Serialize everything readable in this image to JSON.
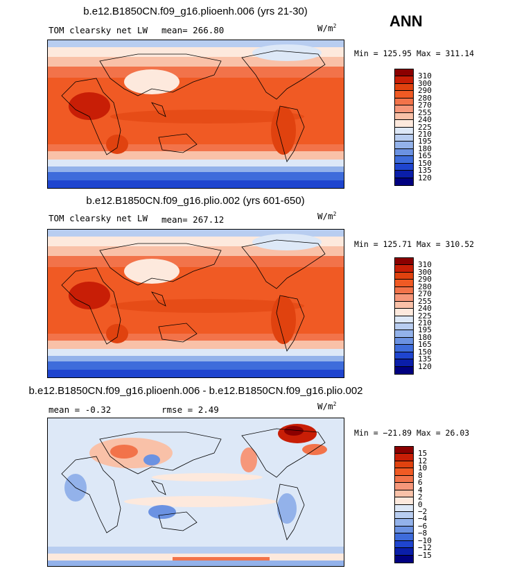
{
  "season": "ANN",
  "units_base": "W/m",
  "units_exp": "2",
  "panels": [
    {
      "title": "b.e12.B1850CN.f09_g16.plioenh.006 (yrs 21-30)",
      "subtitle_left": "TOM clearsky net LW",
      "mean_label": "mean=",
      "mean_value": "266.80",
      "minmax": "Min = 125.95  Max = 311.14",
      "levels": [
        "310",
        "300",
        "290",
        "280",
        "270",
        "255",
        "240",
        "225",
        "210",
        "195",
        "180",
        "165",
        "150",
        "135",
        "120"
      ],
      "colors": [
        "#8b0000",
        "#c81e06",
        "#e0420f",
        "#f05a24",
        "#f2734a",
        "#f6977a",
        "#f9c1a8",
        "#fde9dd",
        "#dde8f7",
        "#b8cdf0",
        "#93b2ea",
        "#6b92e2",
        "#3e6cdb",
        "#1f45cf",
        "#0a1ea9",
        "#000080"
      ]
    },
    {
      "title": "b.e12.B1850CN.f09_g16.plio.002 (yrs 601-650)",
      "subtitle_left": "TOM clearsky net LW",
      "mean_label": "mean=",
      "mean_value": "267.12",
      "minmax": "Min = 125.71  Max = 310.52",
      "levels": [
        "310",
        "300",
        "290",
        "280",
        "270",
        "255",
        "240",
        "225",
        "210",
        "195",
        "180",
        "165",
        "150",
        "135",
        "120"
      ],
      "colors": [
        "#8b0000",
        "#c81e06",
        "#e0420f",
        "#f05a24",
        "#f2734a",
        "#f6977a",
        "#f9c1a8",
        "#fde9dd",
        "#dde8f7",
        "#b8cdf0",
        "#93b2ea",
        "#6b92e2",
        "#3e6cdb",
        "#1f45cf",
        "#0a1ea9",
        "#000080"
      ]
    },
    {
      "title": "b.e12.B1850CN.f09_g16.plioenh.006 - b.e12.B1850CN.f09_g16.plio.002",
      "mean_label": "mean =",
      "mean_value": "-0.32",
      "rmse_label": "rmse =",
      "rmse_value": "2.49",
      "minmax": "Min = −21.89  Max =   26.03",
      "levels": [
        "15",
        "12",
        "10",
        "8",
        "6",
        "4",
        "2",
        "0",
        "−2",
        "−4",
        "−6",
        "−8",
        "−10",
        "−12",
        "−15"
      ],
      "colors": [
        "#8b0000",
        "#c81e06",
        "#e0420f",
        "#f05a24",
        "#f2734a",
        "#f6977a",
        "#f9c1a8",
        "#fde9dd",
        "#dde8f7",
        "#b8cdf0",
        "#93b2ea",
        "#6b92e2",
        "#3e6cdb",
        "#1f45cf",
        "#0a1ea9",
        "#000080"
      ]
    }
  ],
  "chart_data": [
    {
      "type": "heatmap",
      "title": "b.e12.B1850CN.f09_g16.plioenh.006 (yrs 21-30)",
      "variable": "TOM clearsky net LW",
      "units": "W/m2",
      "mean": 266.8,
      "min": 125.95,
      "max": 311.14,
      "contour_levels": [
        120,
        135,
        150,
        165,
        180,
        195,
        210,
        225,
        240,
        255,
        270,
        280,
        290,
        300,
        310
      ]
    },
    {
      "type": "heatmap",
      "title": "b.e12.B1850CN.f09_g16.plio.002 (yrs 601-650)",
      "variable": "TOM clearsky net LW",
      "units": "W/m2",
      "mean": 267.12,
      "min": 125.71,
      "max": 310.52,
      "contour_levels": [
        120,
        135,
        150,
        165,
        180,
        195,
        210,
        225,
        240,
        255,
        270,
        280,
        290,
        300,
        310
      ]
    },
    {
      "type": "heatmap",
      "title": "b.e12.B1850CN.f09_g16.plioenh.006 - b.e12.B1850CN.f09_g16.plio.002",
      "units": "W/m2",
      "mean": -0.32,
      "rmse": 2.49,
      "min": -21.89,
      "max": 26.03,
      "contour_levels": [
        -15,
        -12,
        -10,
        -8,
        -6,
        -4,
        -2,
        0,
        2,
        4,
        6,
        8,
        10,
        12,
        15
      ]
    }
  ]
}
